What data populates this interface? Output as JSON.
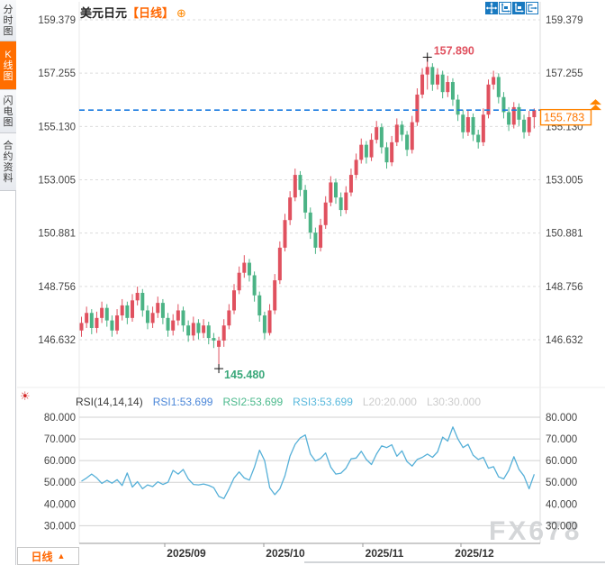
{
  "title": {
    "symbol": "美元日元",
    "period_tag": "【日线】",
    "add_icon": "⊕"
  },
  "sidebar": {
    "items": [
      {
        "label": "分时图",
        "active": false
      },
      {
        "label": "K线图",
        "active": true
      },
      {
        "label": "闪电图",
        "active": false
      },
      {
        "label": "合约资料",
        "active": false
      }
    ]
  },
  "toolbar": {
    "icons": [
      {
        "name": "move-icon",
        "active": true
      },
      {
        "name": "scale-axis-icon",
        "active": false
      },
      {
        "name": "scale-axis-filled-icon",
        "active": true
      },
      {
        "name": "pan-right-icon",
        "active": false
      }
    ]
  },
  "rsi_header": {
    "icon": "☀",
    "items": [
      {
        "label": "RSI(14,14,14)",
        "color": "#3a3a3a"
      },
      {
        "label": "RSI1:53.699",
        "color": "#4a86d8"
      },
      {
        "label": "RSI2:53.699",
        "color": "#4bb98c"
      },
      {
        "label": "RSI3:53.699",
        "color": "#58b8dc"
      },
      {
        "label": "L20:20.000",
        "color": "#cccccc"
      },
      {
        "label": "L30:30.000",
        "color": "#cccccc"
      }
    ]
  },
  "bottom": {
    "period_label": "日线",
    "arrow": "▲"
  },
  "watermark": "FX678",
  "palette": {
    "up": "#e0515f",
    "down": "#4bb385",
    "accent_orange": "#ff6e00",
    "last_price_line": "#1b7ce0",
    "last_price_box": "#ff8400",
    "high_label": "#e0515f",
    "low_label": "#3aa87a",
    "rsi_line": "#56b0d8",
    "axis_text": "#444444",
    "date_text": "#333333",
    "watermark_color": "#d4d6d8",
    "icon_blue": "#1879c0"
  },
  "chart_data": [
    {
      "type": "candlestick",
      "title": "美元日元【日线】",
      "y_ticks": [
        "159.379",
        "157.255",
        "155.130",
        "153.005",
        "150.881",
        "148.756",
        "146.632"
      ],
      "x_tick_labels": [
        "2025/09",
        "2025/10",
        "2025/11",
        "2025/12"
      ],
      "annotations": {
        "high": {
          "label": "157.890",
          "price": 157.89,
          "index": 68
        },
        "low": {
          "label": "145.480",
          "price": 145.48,
          "index": 27
        },
        "last": {
          "label": "155.783",
          "price": 155.783
        }
      },
      "candles": [
        [
          147.0,
          147.55,
          146.75,
          147.3
        ],
        [
          147.3,
          147.95,
          147.1,
          147.7
        ],
        [
          147.7,
          147.85,
          146.85,
          147.1
        ],
        [
          147.1,
          147.75,
          146.9,
          147.5
        ],
        [
          147.5,
          148.15,
          147.3,
          147.9
        ],
        [
          147.9,
          148.05,
          147.15,
          147.4
        ],
        [
          147.4,
          147.6,
          146.75,
          147.0
        ],
        [
          147.0,
          147.85,
          146.85,
          147.6
        ],
        [
          147.6,
          148.25,
          147.4,
          148.0
        ],
        [
          148.0,
          148.15,
          147.25,
          147.5
        ],
        [
          147.5,
          148.45,
          147.35,
          148.2
        ],
        [
          148.2,
          148.75,
          148.0,
          148.5
        ],
        [
          148.5,
          148.65,
          147.55,
          147.8
        ],
        [
          147.8,
          148.0,
          147.05,
          147.3
        ],
        [
          147.3,
          147.95,
          147.1,
          147.7
        ],
        [
          147.7,
          148.35,
          147.5,
          148.1
        ],
        [
          148.1,
          148.25,
          147.25,
          147.5
        ],
        [
          147.5,
          147.7,
          146.75,
          147.0
        ],
        [
          147.0,
          147.65,
          146.8,
          147.4
        ],
        [
          147.4,
          148.05,
          147.2,
          147.8
        ],
        [
          147.8,
          147.95,
          146.95,
          147.2
        ],
        [
          147.2,
          147.4,
          146.55,
          146.8
        ],
        [
          146.8,
          147.55,
          146.6,
          147.3
        ],
        [
          147.3,
          147.45,
          146.65,
          146.9
        ],
        [
          146.9,
          147.45,
          146.7,
          147.2
        ],
        [
          147.2,
          147.35,
          146.45,
          146.7
        ],
        [
          146.7,
          146.9,
          146.3,
          146.6
        ],
        [
          146.35,
          146.75,
          145.48,
          146.6
        ],
        [
          146.6,
          147.45,
          146.35,
          147.2
        ],
        [
          147.2,
          148.05,
          147.05,
          147.8
        ],
        [
          147.8,
          148.85,
          147.65,
          148.6
        ],
        [
          148.6,
          149.55,
          148.45,
          149.3
        ],
        [
          149.3,
          150.0,
          149.1,
          149.7
        ],
        [
          149.7,
          149.85,
          148.95,
          149.2
        ],
        [
          149.2,
          149.35,
          148.15,
          148.4
        ],
        [
          148.4,
          148.55,
          147.35,
          147.6
        ],
        [
          147.6,
          147.75,
          146.65,
          146.9
        ],
        [
          146.9,
          148.05,
          146.8,
          147.8
        ],
        [
          147.8,
          149.25,
          147.65,
          149.0
        ],
        [
          149.0,
          150.55,
          148.85,
          150.3
        ],
        [
          150.3,
          151.65,
          150.15,
          151.4
        ],
        [
          151.4,
          152.55,
          151.2,
          152.3
        ],
        [
          152.3,
          153.45,
          152.15,
          153.2
        ],
        [
          153.2,
          153.35,
          152.35,
          152.6
        ],
        [
          152.6,
          152.8,
          151.45,
          151.7
        ],
        [
          151.7,
          151.9,
          150.65,
          150.9
        ],
        [
          150.9,
          151.1,
          150.05,
          150.3
        ],
        [
          150.3,
          151.45,
          150.15,
          151.2
        ],
        [
          151.2,
          152.35,
          151.05,
          152.1
        ],
        [
          152.1,
          153.15,
          151.95,
          152.9
        ],
        [
          152.9,
          153.05,
          152.05,
          152.3
        ],
        [
          152.3,
          152.5,
          151.55,
          151.8
        ],
        [
          151.8,
          152.75,
          151.65,
          152.5
        ],
        [
          152.5,
          153.45,
          152.35,
          153.2
        ],
        [
          153.2,
          154.05,
          153.05,
          153.8
        ],
        [
          153.8,
          154.65,
          153.65,
          154.4
        ],
        [
          154.4,
          154.55,
          153.65,
          153.9
        ],
        [
          153.9,
          154.85,
          153.75,
          154.6
        ],
        [
          154.6,
          155.35,
          154.45,
          155.1
        ],
        [
          155.1,
          155.25,
          154.05,
          154.3
        ],
        [
          154.3,
          154.5,
          153.45,
          153.7
        ],
        [
          153.7,
          154.75,
          153.55,
          154.5
        ],
        [
          154.5,
          155.45,
          154.35,
          155.2
        ],
        [
          155.2,
          155.35,
          154.55,
          154.8
        ],
        [
          154.8,
          154.95,
          153.95,
          154.2
        ],
        [
          154.2,
          155.55,
          154.05,
          155.3
        ],
        [
          155.3,
          156.65,
          155.15,
          156.4
        ],
        [
          156.4,
          157.45,
          156.25,
          157.2
        ],
        [
          157.2,
          157.89,
          156.6,
          157.5
        ],
        [
          157.5,
          157.65,
          156.55,
          156.8
        ],
        [
          156.8,
          157.45,
          156.6,
          157.2
        ],
        [
          157.2,
          157.35,
          156.25,
          156.5
        ],
        [
          156.5,
          157.15,
          156.3,
          156.9
        ],
        [
          156.9,
          157.05,
          155.95,
          156.2
        ],
        [
          156.2,
          156.4,
          155.35,
          155.6
        ],
        [
          155.6,
          155.8,
          154.65,
          154.9
        ],
        [
          154.9,
          155.75,
          154.75,
          155.5
        ],
        [
          155.5,
          155.65,
          154.55,
          154.8
        ],
        [
          154.8,
          155.0,
          154.25,
          154.5
        ],
        [
          154.5,
          155.85,
          154.35,
          155.6
        ],
        [
          155.6,
          157.0,
          155.45,
          156.8
        ],
        [
          156.8,
          157.35,
          156.6,
          157.1
        ],
        [
          157.1,
          157.25,
          156.05,
          156.3
        ],
        [
          156.3,
          156.5,
          155.45,
          155.7
        ],
        [
          155.7,
          155.9,
          154.95,
          155.2
        ],
        [
          155.2,
          156.1,
          155.05,
          155.9
        ],
        [
          155.9,
          156.05,
          155.15,
          155.4
        ],
        [
          155.4,
          155.6,
          154.65,
          154.9
        ],
        [
          154.9,
          155.75,
          154.75,
          155.5
        ],
        [
          155.5,
          155.85,
          155.05,
          155.783
        ]
      ]
    },
    {
      "type": "line",
      "name": "RSI(14,14,14)",
      "y_tick_labels": [
        "80.000",
        "70.000",
        "60.000",
        "50.000",
        "40.000",
        "30.000"
      ],
      "gridline_values": [
        80,
        70,
        60,
        50,
        30
      ],
      "values": [
        50.5,
        52.0,
        53.8,
        52.0,
        49.5,
        50.9,
        49.6,
        51.2,
        48.5,
        54.3,
        47.8,
        50.3,
        47.0,
        48.8,
        48.0,
        50.2,
        49.0,
        50.0,
        55.5,
        53.8,
        55.9,
        51.5,
        49.0,
        48.8,
        49.2,
        48.6,
        47.5,
        43.5,
        42.5,
        47.0,
        52.0,
        54.8,
        52.0,
        51.0,
        57.0,
        64.8,
        60.0,
        47.5,
        44.3,
        47.0,
        53.0,
        62.0,
        67.5,
        70.5,
        71.8,
        63.0,
        59.8,
        61.0,
        63.5,
        57.0,
        53.8,
        54.2,
        56.5,
        60.8,
        61.2,
        64.3,
        60.5,
        58.2,
        63.0,
        66.8,
        66.0,
        67.3,
        62.0,
        64.5,
        59.5,
        57.5,
        60.5,
        61.5,
        63.0,
        61.5,
        64.0,
        70.8,
        69.0,
        75.5,
        70.0,
        66.0,
        67.5,
        62.5,
        60.5,
        61.5,
        56.5,
        57.2,
        52.5,
        51.6,
        55.5,
        61.8,
        56.0,
        52.9,
        47.0,
        53.699
      ]
    }
  ]
}
